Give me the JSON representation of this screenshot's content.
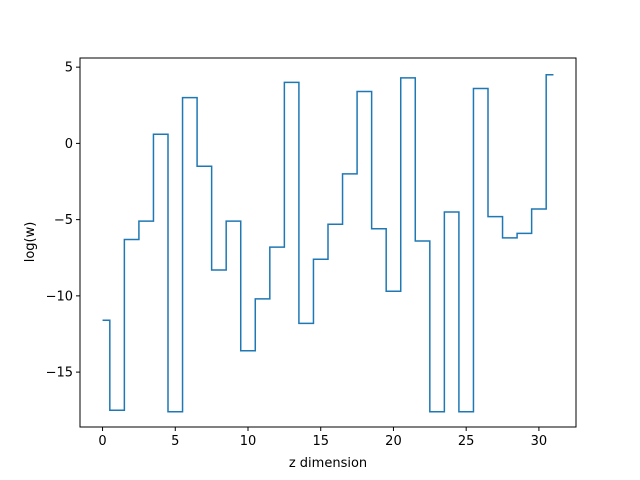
{
  "chart_data": {
    "type": "line",
    "drawstyle": "steps-mid",
    "title": "",
    "xlabel": "z dimension",
    "ylabel": "log(w)",
    "xlim": [
      -1.55,
      32.55
    ],
    "ylim": [
      -18.6,
      5.6
    ],
    "grid": false,
    "x_ticks": [
      0,
      5,
      10,
      15,
      20,
      25,
      30
    ],
    "x_tick_labels": [
      "0",
      "5",
      "10",
      "15",
      "20",
      "25",
      "30"
    ],
    "y_ticks": [
      5,
      0,
      -5,
      -10,
      -15
    ],
    "y_tick_labels": [
      "5",
      "0",
      "−5",
      "−10",
      "−15"
    ],
    "series": [
      {
        "color": "#1f77b4",
        "x": [
          0,
          1,
          2,
          3,
          4,
          5,
          6,
          7,
          8,
          9,
          10,
          11,
          12,
          13,
          14,
          15,
          16,
          17,
          18,
          19,
          20,
          21,
          22,
          23,
          24,
          25,
          26,
          27,
          28,
          29,
          30,
          31
        ],
        "values": [
          -11.6,
          -17.5,
          -6.3,
          -5.1,
          0.6,
          -17.6,
          3.0,
          -1.5,
          -8.3,
          -5.1,
          -13.6,
          -10.2,
          -6.8,
          4.0,
          -11.8,
          -7.6,
          -5.3,
          -2.0,
          3.4,
          -5.6,
          -9.7,
          4.3,
          -6.4,
          -17.6,
          -4.5,
          -17.6,
          3.6,
          -4.8,
          -6.2,
          -5.9,
          -4.3,
          4.5
        ]
      }
    ]
  }
}
